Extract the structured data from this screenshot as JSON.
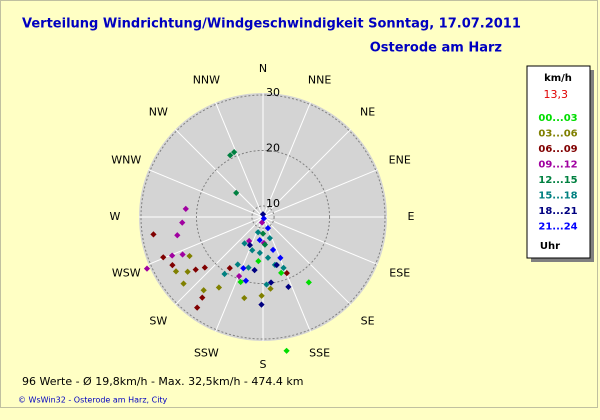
{
  "chart_data": {
    "type": "polar_scatter",
    "title": "Verteilung Windrichtung/Windgeschwindigkeit  Sonntag, 17.07.2011",
    "subtitle": "Osterode am Harz",
    "categories": [
      "N",
      "NNE",
      "NE",
      "ENE",
      "E",
      "ESE",
      "SE",
      "SSE",
      "S",
      "SSW",
      "SW",
      "WSW",
      "W",
      "WNW",
      "NW",
      "NNW"
    ],
    "ylim": [
      8,
      30
    ],
    "yticks": [
      10,
      20,
      30
    ],
    "legend_title": "km/h",
    "current_value": "13,3",
    "legend_unit": "Uhr",
    "stats": "96 Werte  -  Ø 19,8km/h  -  Max. 32,5km/h  -  474.4 km",
    "credit": "© WsWin32  -  Osterode am Harz, City",
    "series": [
      {
        "name": "00...03",
        "color": "#00dd00",
        "direction": [
          170,
          145,
          199,
          162,
          186
        ],
        "values": [
          32.5,
          22.4,
          20.4,
          18.6,
          16
        ]
      },
      {
        "name": "03...06",
        "color": "#808000",
        "direction": [
          242,
          234,
          230,
          219,
          212,
          193,
          181,
          174,
          238
        ],
        "values": [
          23,
          24.8,
          26.7,
          25,
          23,
          23,
          22.2,
          21,
          26.5
        ]
      },
      {
        "name": "06...09",
        "color": "#800000",
        "direction": [
          261,
          248,
          242,
          232,
          229,
          216,
          217,
          213,
          157
        ],
        "values": [
          28,
          27.4,
          26.5,
          23.4,
          21.9,
          28.2,
          26.2,
          19,
          19
        ]
      },
      {
        "name": "09...12",
        "color": "#a000a0",
        "direction": [
          276,
          266,
          258,
          245,
          246,
          247,
          202,
          190,
          210,
          178
        ],
        "values": [
          22,
          22.6,
          23.8,
          24,
          30.9,
          25.8,
          19.5,
          9,
          13,
          12.7
        ]
      },
      {
        "name": "12...15",
        "color": "#008040",
        "direction": [
          336,
          332,
          312,
          176,
          180
        ],
        "values": [
          20.8,
          20.6,
          14.5,
          13,
          11
        ]
      },
      {
        "name": "15...18",
        "color": "#008080",
        "direction": [
          215,
          198,
          185,
          173,
          166,
          158,
          208,
          196,
          198,
          162,
          214,
          177
        ],
        "values": [
          13.8,
          14.3,
          14.5,
          15.4,
          16.9,
          17.9,
          17.7,
          17.5,
          10.9,
          12,
          20.4,
          20.2
        ]
      },
      {
        "name": "18...21",
        "color": "#000080",
        "direction": [
          0,
          205,
          181,
          173,
          160,
          189,
          164
        ],
        "values": [
          8.5,
          13.6,
          23.8,
          19.9,
          21.4,
          17.7,
          17
        ]
      },
      {
        "name": "21...24",
        "color": "#0000ff",
        "direction": [
          150,
          156,
          188,
          163,
          201,
          157,
          195
        ],
        "values": [
          8.3,
          10.2,
          12.2,
          14.2,
          17.9,
          16,
          19.9
        ]
      }
    ]
  }
}
